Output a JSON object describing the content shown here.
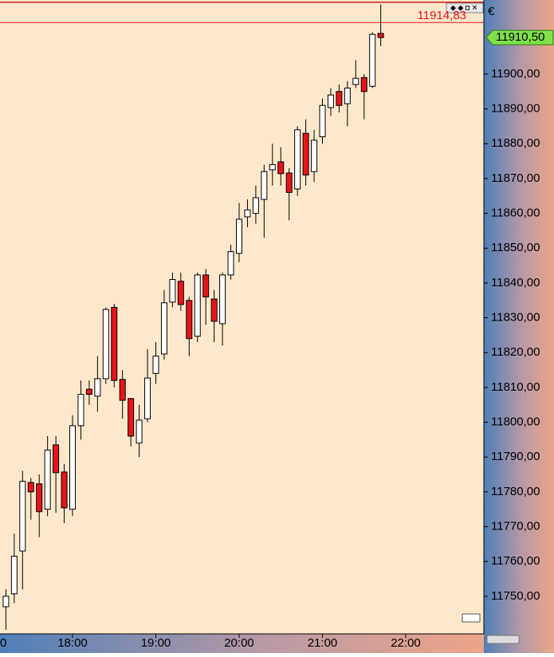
{
  "chart_data": {
    "type": "candlestick",
    "x": [
      "17:12",
      "17:18",
      "17:24",
      "17:30",
      "17:36",
      "17:42",
      "17:48",
      "17:54",
      "18:00",
      "18:06",
      "18:12",
      "18:18",
      "18:24",
      "18:30",
      "18:36",
      "18:42",
      "18:48",
      "18:54",
      "19:00",
      "19:06",
      "19:12",
      "19:18",
      "19:24",
      "19:30",
      "19:36",
      "19:42",
      "19:48",
      "19:54",
      "20:00",
      "20:06",
      "20:12",
      "20:18",
      "20:24",
      "20:30",
      "20:36",
      "20:42",
      "20:48",
      "20:54",
      "21:00",
      "21:06",
      "21:12",
      "21:18",
      "21:24",
      "21:30",
      "21:36",
      "21:42"
    ],
    "open": [
      11747,
      11750.7,
      11763,
      11782.7,
      11782.3,
      11775,
      11793.5,
      11785.7,
      11775,
      11799,
      11809.5,
      11807.5,
      11812.5,
      11833,
      11812.3,
      11806.8,
      11794,
      11801,
      11814,
      11819.6,
      11834.5,
      11840.5,
      11835,
      11824.7,
      11842.3,
      11835.4,
      11828.3,
      11842.3,
      11848.5,
      11859,
      11860,
      11864,
      11872.5,
      11874.8,
      11871.6,
      11867,
      11883,
      11872,
      11882,
      11890.4,
      11895,
      11891.5,
      11897,
      11899,
      11896.5,
      11911.7
    ],
    "high": [
      11752,
      11768,
      11786,
      11784,
      11785,
      11796,
      11796,
      11788,
      11802,
      11812,
      11812,
      11819,
      11833,
      11834,
      11815,
      11807,
      11805,
      11821,
      11823,
      11838,
      11843,
      11843,
      11836,
      11843,
      11844,
      11838,
      11843,
      11851,
      11863,
      11864,
      11868,
      11874,
      11880,
      11879,
      11873,
      11885,
      11887,
      11884,
      11893,
      11896,
      11897,
      11898,
      11904,
      11900,
      11912,
      11920
    ],
    "low": [
      11740.4,
      11748,
      11752,
      11772,
      11767,
      11773,
      11774,
      11771,
      11773,
      11795,
      11805,
      11803,
      11811,
      11810,
      11801,
      11793,
      11790,
      11800,
      11811,
      11818,
      11833,
      11832,
      11819,
      11823,
      11828,
      11823,
      11822,
      11841,
      11846,
      11856,
      11857,
      11853,
      11868,
      11868,
      11858,
      11865,
      11868,
      11869,
      11880,
      11888,
      11889,
      11885,
      11896,
      11887,
      11896,
      11908
    ],
    "close": [
      11750,
      11761.5,
      11783,
      11780,
      11774.3,
      11792,
      11785.5,
      11775.4,
      11799,
      11808,
      11808,
      11812.5,
      11832.4,
      11812,
      11806.3,
      11796,
      11800.6,
      11812.7,
      11819,
      11834.3,
      11841,
      11833.8,
      11824,
      11842.3,
      11836,
      11829,
      11842.3,
      11849,
      11858.3,
      11861,
      11864.5,
      11872,
      11874,
      11871.4,
      11866,
      11884,
      11871,
      11881,
      11891,
      11894,
      11891,
      11896,
      11898.8,
      11895,
      11911.4,
      11910.5
    ],
    "up_color": "#ffffff",
    "down_color": "#e8141a",
    "ylim": [
      11739.2,
      11920.6
    ],
    "yticks": [
      {
        "value": 11750,
        "label": "11750,00"
      },
      {
        "value": 11760,
        "label": "11760,00"
      },
      {
        "value": 11770,
        "label": "11770,00"
      },
      {
        "value": 11780,
        "label": "11780,00"
      },
      {
        "value": 11790,
        "label": "11790,00"
      },
      {
        "value": 11800,
        "label": "11800,00"
      },
      {
        "value": 11810,
        "label": "11810,00"
      },
      {
        "value": 11820,
        "label": "11820,00"
      },
      {
        "value": 11830,
        "label": "11830,00"
      },
      {
        "value": 11840,
        "label": "11840,00"
      },
      {
        "value": 11850,
        "label": "11850,00"
      },
      {
        "value": 11860,
        "label": "11860,00"
      },
      {
        "value": 11870,
        "label": "11870,00"
      },
      {
        "value": 11880,
        "label": "11880,00"
      },
      {
        "value": 11890,
        "label": "11890,00"
      },
      {
        "value": 11900,
        "label": "11900,00"
      }
    ],
    "xticks": [
      {
        "value": "17:00",
        "label": "0"
      },
      {
        "value": "18:00",
        "label": "18:00"
      },
      {
        "value": "19:00",
        "label": "19:00"
      },
      {
        "value": "20:00",
        "label": "20:00"
      },
      {
        "value": "21:00",
        "label": "21:00"
      },
      {
        "value": "22:00",
        "label": "22:00"
      }
    ],
    "reference_line": {
      "value": 11914.83,
      "label": "11914,83",
      "color": "#e8141a"
    },
    "last_price": {
      "value": 11910.5,
      "label": "11910,50",
      "color": "#7fe04a"
    },
    "currency": "€"
  }
}
